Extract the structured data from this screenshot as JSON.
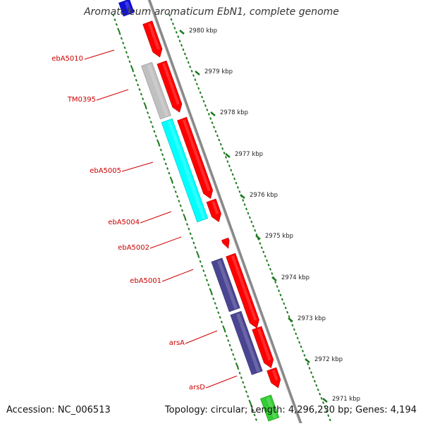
{
  "title": "Aromatoleum aromaticum EbN1, complete genome",
  "footer": {
    "accession": "Accession: NC_006513",
    "topology": "Topology: circular; Length: 4,296,230 bp; Genes: 4,194"
  },
  "colors": {
    "backbone": "#888888",
    "ruler": "#1d7a1d",
    "forward_gene": "#ff0000",
    "label": "#cc0000",
    "gene_grey": "#c0c0c0",
    "gene_cyan": "#00ffff",
    "gene_navy": "#4a4592",
    "gene_green": "#33cc33",
    "gene_blue": "#1010dd"
  },
  "ruler_labels": [
    "2980 kbp",
    "2979 kbp",
    "2978 kbp",
    "2977 kbp",
    "2976 kbp",
    "2975 kbp",
    "2974 kbp",
    "2973 kbp",
    "2972 kbp",
    "2971 kbp"
  ],
  "gene_labels": [
    "ebA5010",
    "TM0395",
    "ebA5005",
    "ebA5004",
    "ebA5002",
    "ebA5001",
    "arsA",
    "arsD"
  ]
}
